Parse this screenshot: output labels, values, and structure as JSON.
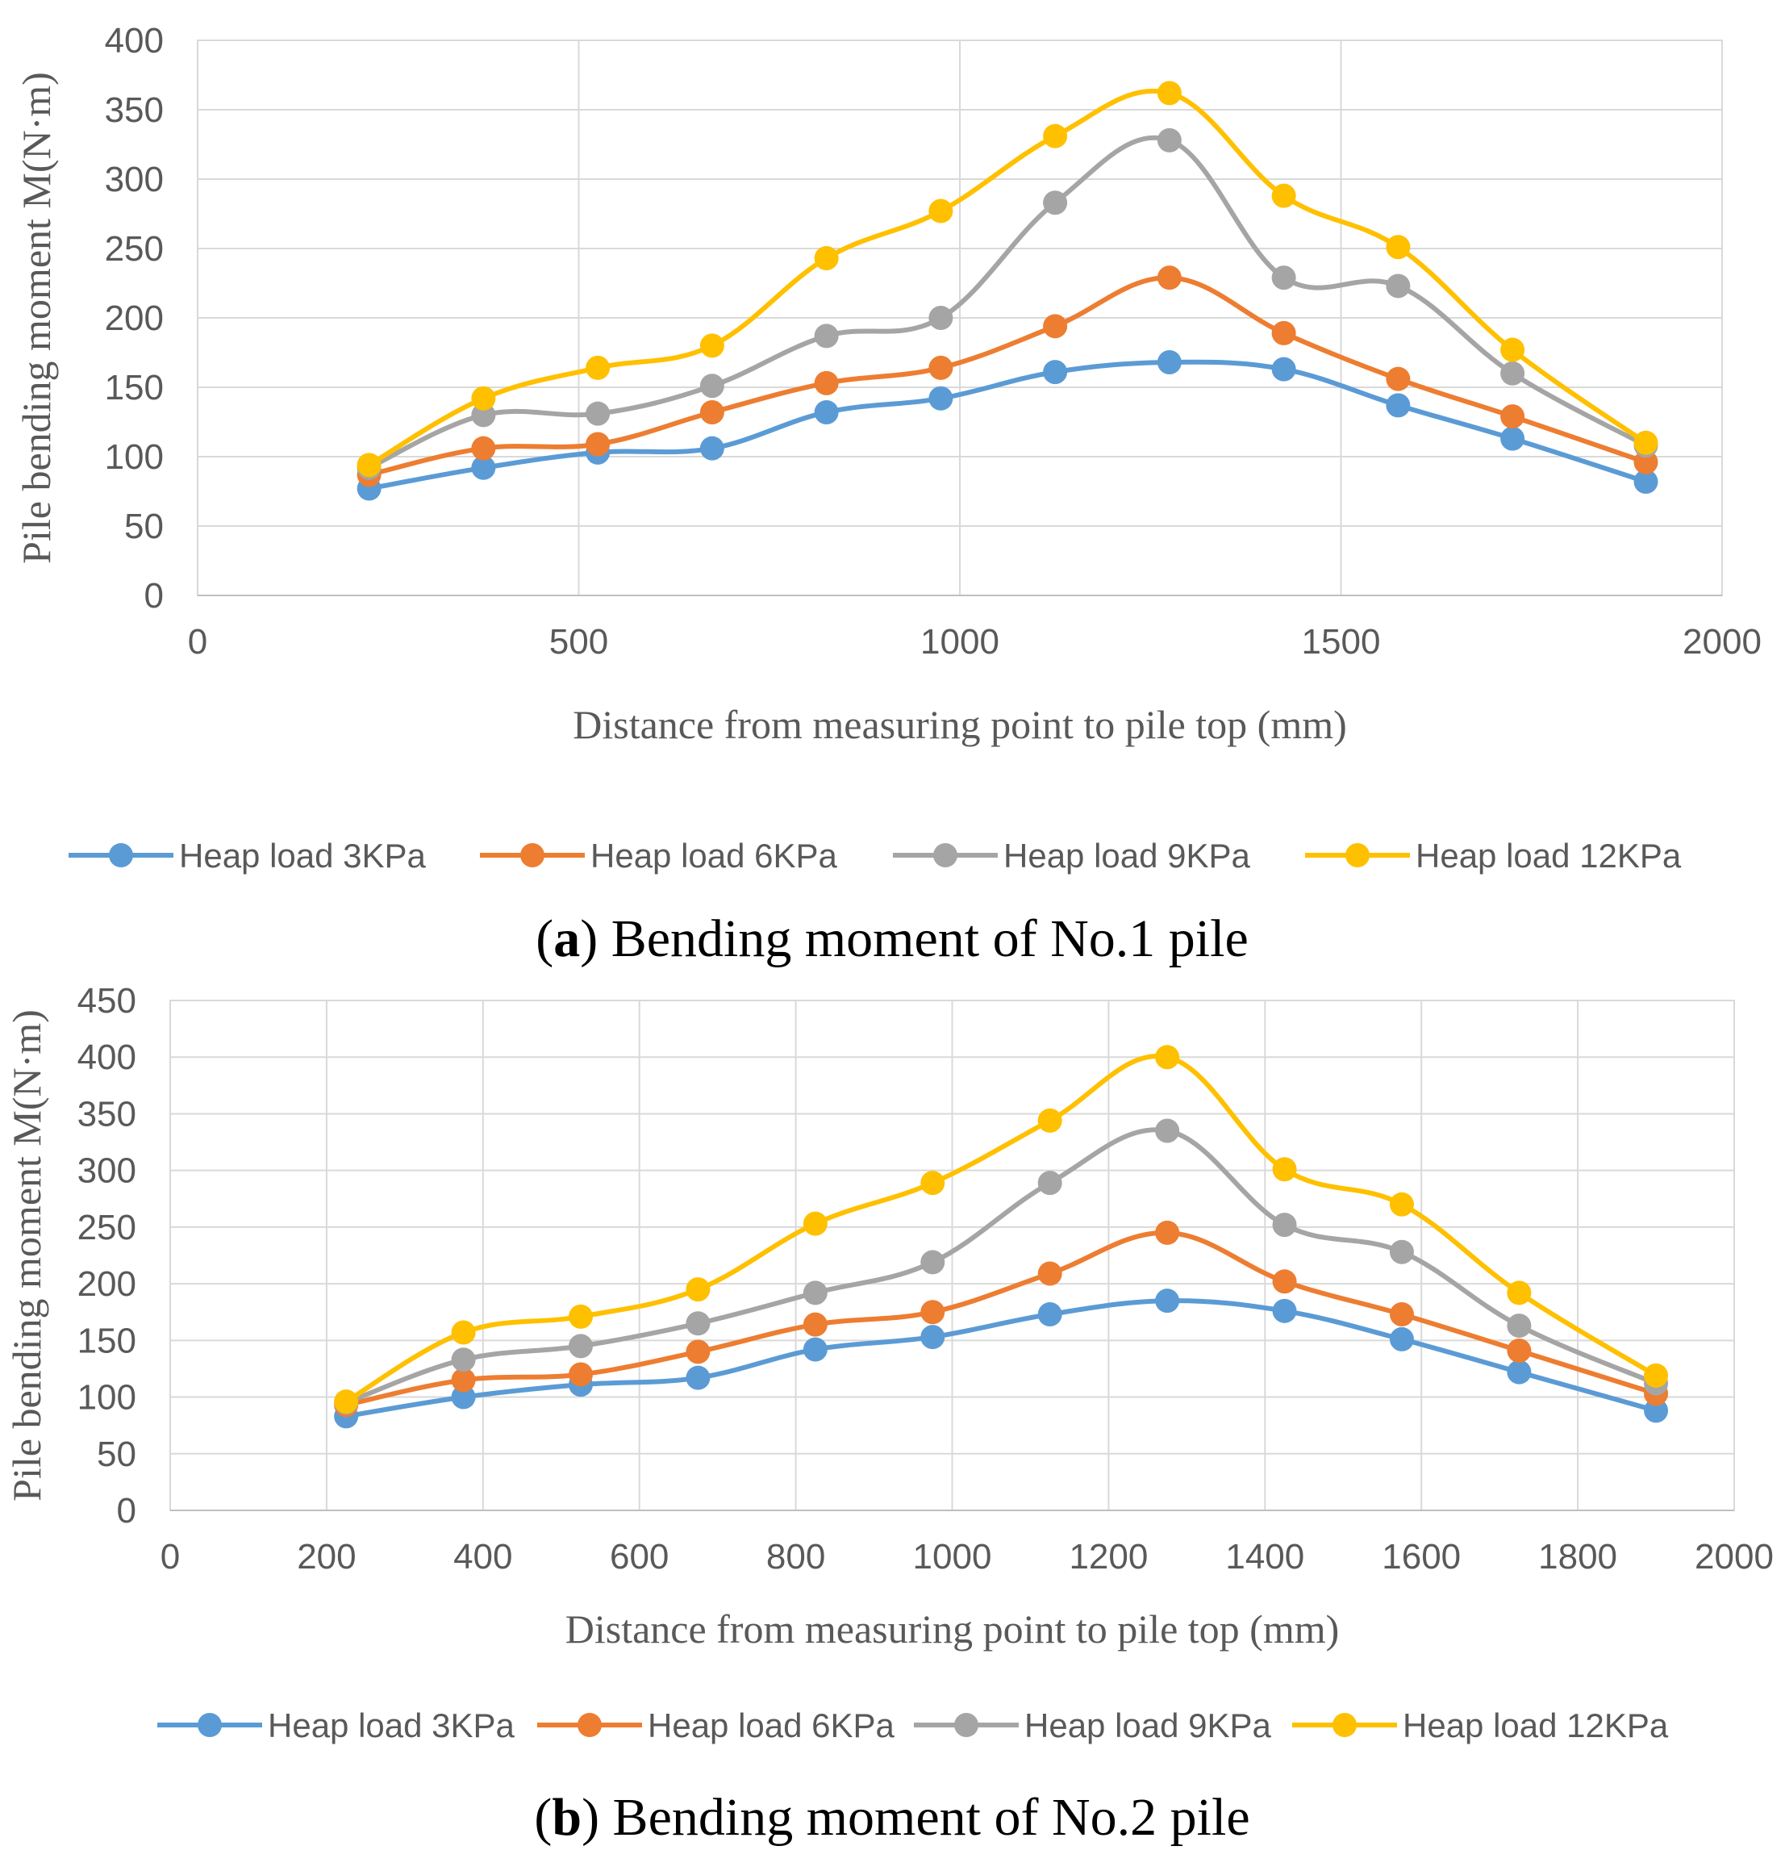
{
  "chart_data": [
    {
      "type": "line",
      "caption_letter": "a",
      "caption_text": "Bending moment of No.1 pile",
      "xlabel": "Distance from measuring point to pile top  (mm)",
      "ylabel": "Pile bending moment  M(N·m)",
      "xlim": [
        0,
        2000
      ],
      "ylim": [
        0,
        400
      ],
      "xticks": [
        0,
        500,
        1000,
        1500,
        2000
      ],
      "yticks": [
        0,
        50,
        100,
        150,
        200,
        250,
        300,
        350,
        400
      ],
      "grid": true,
      "legend_position": "bottom",
      "x": [
        225,
        375,
        525,
        675,
        825,
        975,
        1125,
        1275,
        1425,
        1575,
        1725,
        1900
      ],
      "series": [
        {
          "name": "Heap load 3KPa",
          "color": "#5B9BD5",
          "values": [
            77,
            92,
            103,
            106,
            132,
            142,
            161,
            168,
            163,
            137,
            113,
            82
          ]
        },
        {
          "name": "Heap load 6KPa",
          "color": "#ED7D31",
          "values": [
            87,
            106,
            109,
            132,
            153,
            164,
            194,
            229,
            189,
            156,
            129,
            96
          ]
        },
        {
          "name": "Heap load 9KPa",
          "color": "#A5A5A5",
          "values": [
            92,
            130,
            131,
            151,
            187,
            200,
            283,
            328,
            229,
            223,
            160,
            108
          ]
        },
        {
          "name": "Heap load 12KPa",
          "color": "#FFC000",
          "values": [
            94,
            142,
            164,
            180,
            243,
            277,
            331,
            362,
            288,
            251,
            177,
            110
          ]
        }
      ]
    },
    {
      "type": "line",
      "caption_letter": "b",
      "caption_text": "Bending moment of No.2 pile",
      "xlabel": "Distance from measuring point to pile top  (mm)",
      "ylabel": "Pile bending moment  M(N·m)",
      "xlim": [
        0,
        2000
      ],
      "ylim": [
        0,
        450
      ],
      "xticks": [
        0,
        200,
        400,
        600,
        800,
        1000,
        1200,
        1400,
        1600,
        1800,
        2000
      ],
      "yticks": [
        0,
        50,
        100,
        150,
        200,
        250,
        300,
        350,
        400,
        450
      ],
      "grid": true,
      "legend_position": "bottom",
      "x": [
        225,
        375,
        525,
        675,
        825,
        975,
        1125,
        1275,
        1425,
        1575,
        1725,
        1900
      ],
      "series": [
        {
          "name": "Heap load 3KPa",
          "color": "#5B9BD5",
          "values": [
            83,
            100,
            111,
            117,
            142,
            153,
            173,
            185,
            176,
            151,
            122,
            88
          ]
        },
        {
          "name": "Heap load 6KPa",
          "color": "#ED7D31",
          "values": [
            93,
            115,
            120,
            140,
            164,
            175,
            209,
            245,
            202,
            173,
            141,
            103
          ]
        },
        {
          "name": "Heap load 9KPa",
          "color": "#A5A5A5",
          "values": [
            95,
            133,
            145,
            165,
            192,
            219,
            289,
            335,
            252,
            228,
            163,
            112
          ]
        },
        {
          "name": "Heap load 12KPa",
          "color": "#FFC000",
          "values": [
            96,
            157,
            171,
            195,
            253,
            289,
            344,
            400,
            301,
            270,
            192,
            119
          ]
        }
      ]
    }
  ]
}
